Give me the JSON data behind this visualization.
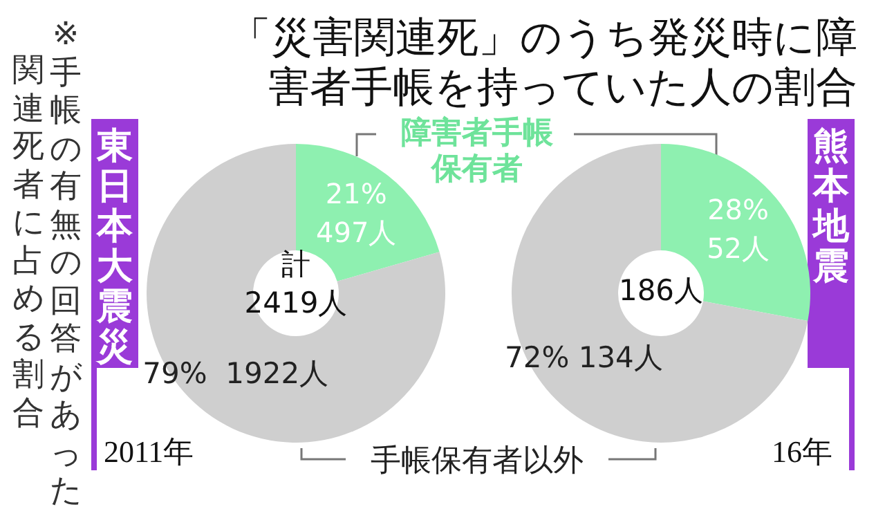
{
  "chart_data": [
    {
      "type": "donut",
      "title": "「災害関連死」のうち発災時に障害者手帳を持っていた人の割合",
      "subtitle": "東日本大震災",
      "categories": [
        "障害者手帳保有者",
        "手帳保有者以外"
      ],
      "values": [
        497,
        1922
      ],
      "value_labels": [
        "21%\n497人",
        "79%  1922人"
      ],
      "colors": [
        "#8ef0b0",
        "#cfcfcf"
      ],
      "annotations": [
        "計\n2419人",
        "2011年",
        "※手帳の有無の回答があった",
        "関連死者に占める割合"
      ]
    },
    {
      "type": "donut",
      "subtitle": "熊本地震",
      "categories": [
        null,
        null
      ],
      "values": [
        52,
        134
      ],
      "value_labels": [
        "28%\n52人",
        "72% 134人"
      ],
      "colors": [
        "#8ef0b0",
        "#cfcfcf"
      ],
      "annotations": [
        "186人",
        "16年"
      ]
    }
  ]
}
